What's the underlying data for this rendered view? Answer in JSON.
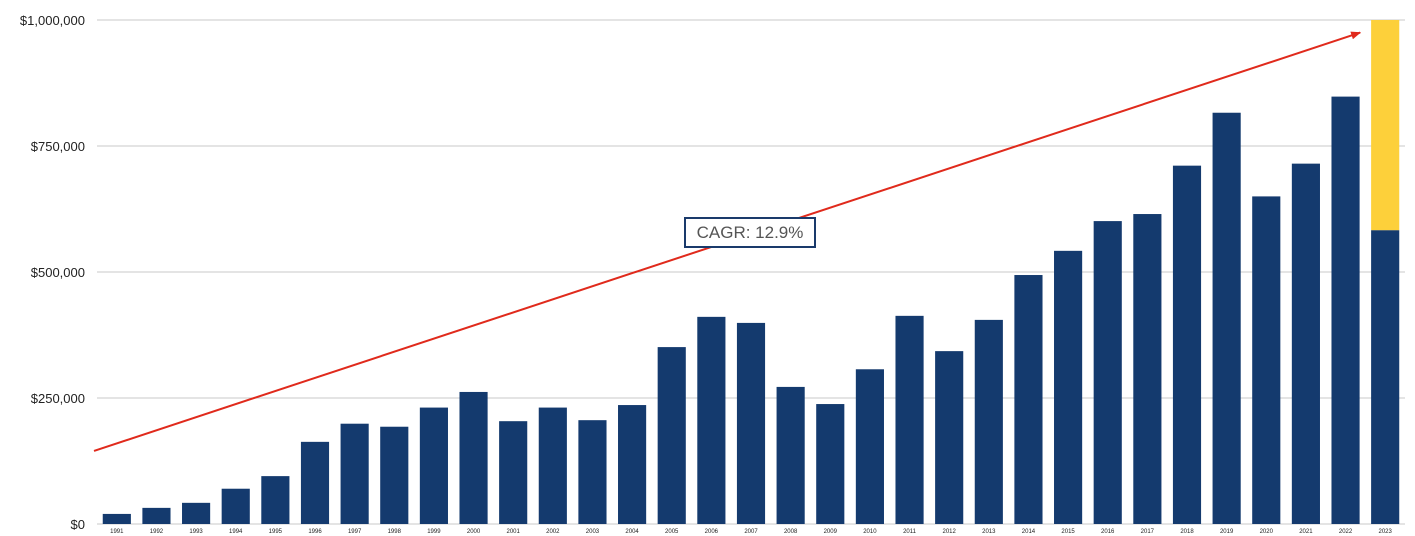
{
  "chart_data": {
    "type": "bar",
    "categories": [
      "1991",
      "1992",
      "1993",
      "1994",
      "1995",
      "1996",
      "1997",
      "1998",
      "1999",
      "2000",
      "2001",
      "2002",
      "2003",
      "2004",
      "2005",
      "2006",
      "2007",
      "2008",
      "2009",
      "2010",
      "2011",
      "2012",
      "2013",
      "2014",
      "2015",
      "2016",
      "2017",
      "2018",
      "2019",
      "2020",
      "2021",
      "2022",
      "2023"
    ],
    "series": [
      {
        "values": [
          20000,
          32000,
          42000,
          70000,
          95000,
          163000,
          199000,
          193000,
          231000,
          262000,
          204000,
          231000,
          206000,
          236000,
          351000,
          411000,
          399000,
          272000,
          238000,
          307000,
          413000,
          343000,
          405000,
          494000,
          542000,
          601000,
          615000,
          711000,
          816000,
          650000,
          715000,
          848000,
          583000
        ],
        "color": "#143a6e"
      },
      {
        "values": [
          0,
          0,
          0,
          0,
          0,
          0,
          0,
          0,
          0,
          0,
          0,
          0,
          0,
          0,
          0,
          0,
          0,
          0,
          0,
          0,
          0,
          0,
          0,
          0,
          0,
          0,
          0,
          0,
          0,
          0,
          0,
          0,
          417000
        ],
        "color": "#fdd03a"
      }
    ],
    "stacked": true,
    "yticks": [
      0,
      250000,
      500000,
      750000,
      1000000
    ],
    "ytick_labels": [
      "$0",
      "$250,000",
      "$500,000",
      "$750,000",
      "$1,000,000"
    ],
    "ylim": [
      0,
      1000000
    ],
    "grid": "horizontal",
    "legend": "none",
    "trend_arrow": {
      "start": {
        "x": "1991",
        "y": 145000
      },
      "end": {
        "x": "2023",
        "y": 975000
      },
      "color": "#e02a1c"
    },
    "annotation": {
      "text": "CAGR: 12.9%",
      "border_color": "#1a3a6b"
    }
  }
}
